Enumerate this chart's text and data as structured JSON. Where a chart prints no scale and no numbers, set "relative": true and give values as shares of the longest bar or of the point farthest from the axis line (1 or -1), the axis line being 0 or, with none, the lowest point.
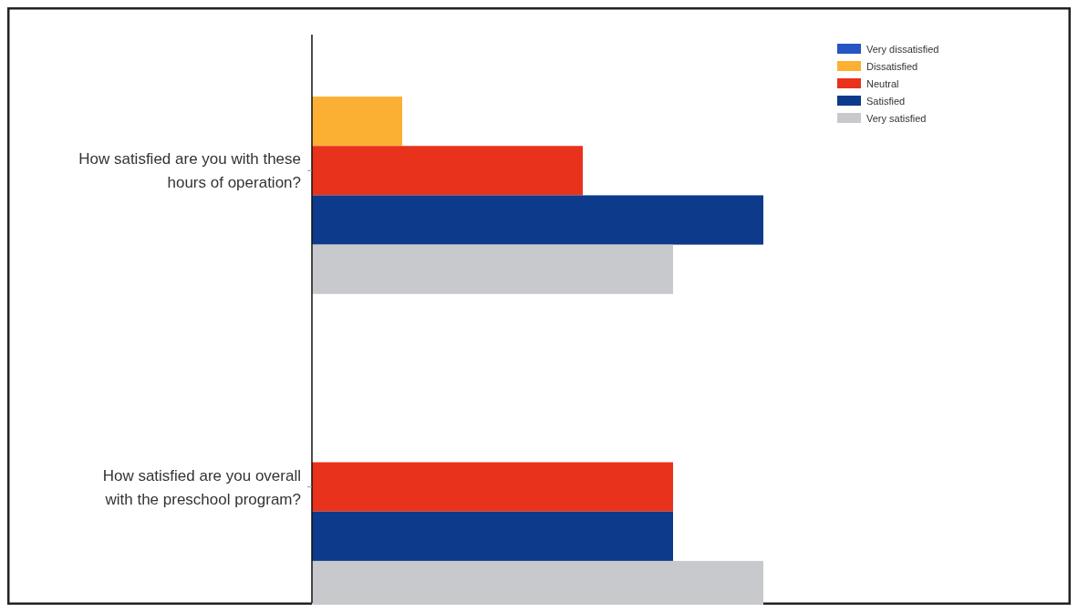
{
  "chart_data": {
    "type": "bar",
    "orientation": "horizontal",
    "relative": true,
    "categories": [
      "How satisfied are you with these hours of operation?",
      "How satisfied are you overall with the preschool program?"
    ],
    "series": [
      {
        "name": "Very dissatisfied",
        "color": "#2456c4",
        "values": [
          0,
          0
        ]
      },
      {
        "name": "Dissatisfied",
        "color": "#fbb034",
        "values": [
          0.2,
          0
        ]
      },
      {
        "name": "Neutral",
        "color": "#e8321b",
        "values": [
          0.6,
          0.8
        ]
      },
      {
        "name": "Satisfied",
        "color": "#0d3a8a",
        "values": [
          1,
          0.8
        ]
      },
      {
        "name": "Very satisfied",
        "color": "#c8c9cd",
        "values": [
          0.8,
          1
        ]
      }
    ],
    "legend": "top right"
  }
}
